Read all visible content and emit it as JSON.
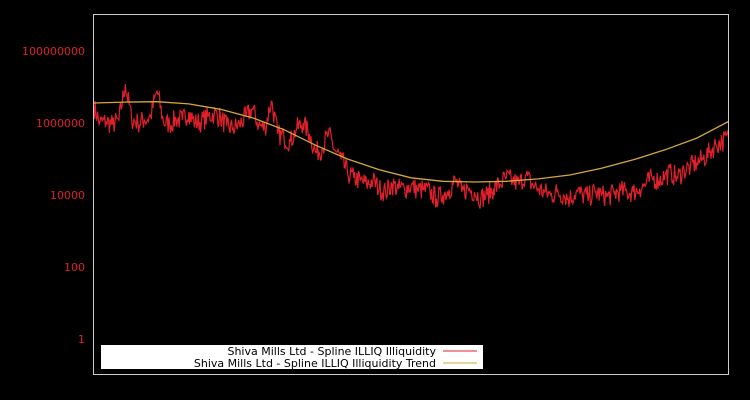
{
  "chart_data": {
    "type": "line",
    "title": "",
    "xlabel": "",
    "ylabel": "",
    "yscale": "log",
    "ylim": [
      0.3,
      2000000000
    ],
    "y_ticks": [
      {
        "value": 100000000,
        "label": "100000000"
      },
      {
        "value": 1000000,
        "label": "1000000"
      },
      {
        "value": 10000,
        "label": "10000"
      },
      {
        "value": 100,
        "label": "100"
      },
      {
        "value": 1,
        "label": "1"
      }
    ],
    "x_tick_labels": [],
    "grid": false,
    "legend_position": "lower left",
    "colors": {
      "background": "#000000",
      "frame": "#cccccc",
      "tick_label": "#e0202a",
      "series": "#e0202a",
      "trend": "#d4a838",
      "legend_bg": "#ffffff"
    },
    "series": [
      {
        "name": "Shiva Mills Ltd - Spline ILLIQ Illiquidity",
        "color": "#e0202a",
        "x_fraction": [
          0.0,
          0.01,
          0.02,
          0.03,
          0.04,
          0.05,
          0.06,
          0.07,
          0.08,
          0.09,
          0.1,
          0.11,
          0.12,
          0.13,
          0.14,
          0.15,
          0.16,
          0.17,
          0.18,
          0.19,
          0.2,
          0.21,
          0.22,
          0.23,
          0.24,
          0.25,
          0.26,
          0.27,
          0.28,
          0.29,
          0.3,
          0.31,
          0.32,
          0.33,
          0.34,
          0.35,
          0.36,
          0.37,
          0.38,
          0.39,
          0.4,
          0.41,
          0.42,
          0.43,
          0.44,
          0.45,
          0.46,
          0.47,
          0.48,
          0.49,
          0.5,
          0.51,
          0.52,
          0.53,
          0.54,
          0.55,
          0.56,
          0.57,
          0.58,
          0.59,
          0.6,
          0.61,
          0.62,
          0.63,
          0.64,
          0.65,
          0.66,
          0.67,
          0.68,
          0.69,
          0.7,
          0.71,
          0.72,
          0.73,
          0.74,
          0.75,
          0.76,
          0.77,
          0.78,
          0.79,
          0.8,
          0.81,
          0.82,
          0.83,
          0.84,
          0.85,
          0.86,
          0.87,
          0.88,
          0.89,
          0.9,
          0.91,
          0.92,
          0.93,
          0.94,
          0.95,
          0.96,
          0.97,
          0.98,
          0.99,
          1.0
        ],
        "values": [
          3000000,
          1000000,
          1100000,
          900000,
          1200000,
          12000000,
          1300000,
          1000000,
          1200000,
          1500000,
          8000000,
          1100000,
          900000,
          1300000,
          1200000,
          2000000,
          1000000,
          1100000,
          1500000,
          1800000,
          1400000,
          800000,
          700000,
          900000,
          1500000,
          2500000,
          900000,
          700000,
          4000000,
          500000,
          400000,
          300000,
          700000,
          1000000,
          500000,
          150000,
          200000,
          500000,
          180000,
          100000,
          40000,
          30000,
          25000,
          20000,
          25000,
          15000,
          12000,
          20000,
          15000,
          15000,
          18000,
          14000,
          14000,
          12000,
          8000,
          10000,
          14000,
          25000,
          12000,
          15000,
          12000,
          8000,
          10000,
          15000,
          20000,
          30000,
          25000,
          20000,
          35000,
          20000,
          15000,
          12000,
          10000,
          12000,
          10000,
          8000,
          12000,
          10000,
          9000,
          12000,
          10000,
          9000,
          11000,
          13000,
          12000,
          12000,
          15000,
          20000,
          30000,
          25000,
          35000,
          40000,
          30000,
          50000,
          60000,
          80000,
          100000,
          150000,
          250000,
          300000,
          400000
        ]
      },
      {
        "name": "Shiva Mills Ltd - Spline ILLIQ Illiquidity Trend",
        "color": "#d4a838",
        "x_fraction": [
          0.0,
          0.05,
          0.1,
          0.15,
          0.2,
          0.25,
          0.3,
          0.35,
          0.4,
          0.45,
          0.5,
          0.55,
          0.6,
          0.65,
          0.7,
          0.75,
          0.8,
          0.85,
          0.9,
          0.95,
          1.0
        ],
        "values": [
          3600000,
          3800000,
          3900000,
          3400000,
          2400000,
          1400000,
          650000,
          240000,
          100000,
          50000,
          30000,
          24000,
          23000,
          24000,
          28000,
          36000,
          55000,
          95000,
          180000,
          380000,
          1100000
        ]
      }
    ]
  },
  "legend": {
    "items": [
      {
        "label": "Shiva Mills Ltd - Spline ILLIQ Illiquidity",
        "color": "#e0202a"
      },
      {
        "label": "Shiva Mills Ltd - Spline ILLIQ Illiquidity Trend",
        "color": "#d4a838"
      }
    ]
  }
}
